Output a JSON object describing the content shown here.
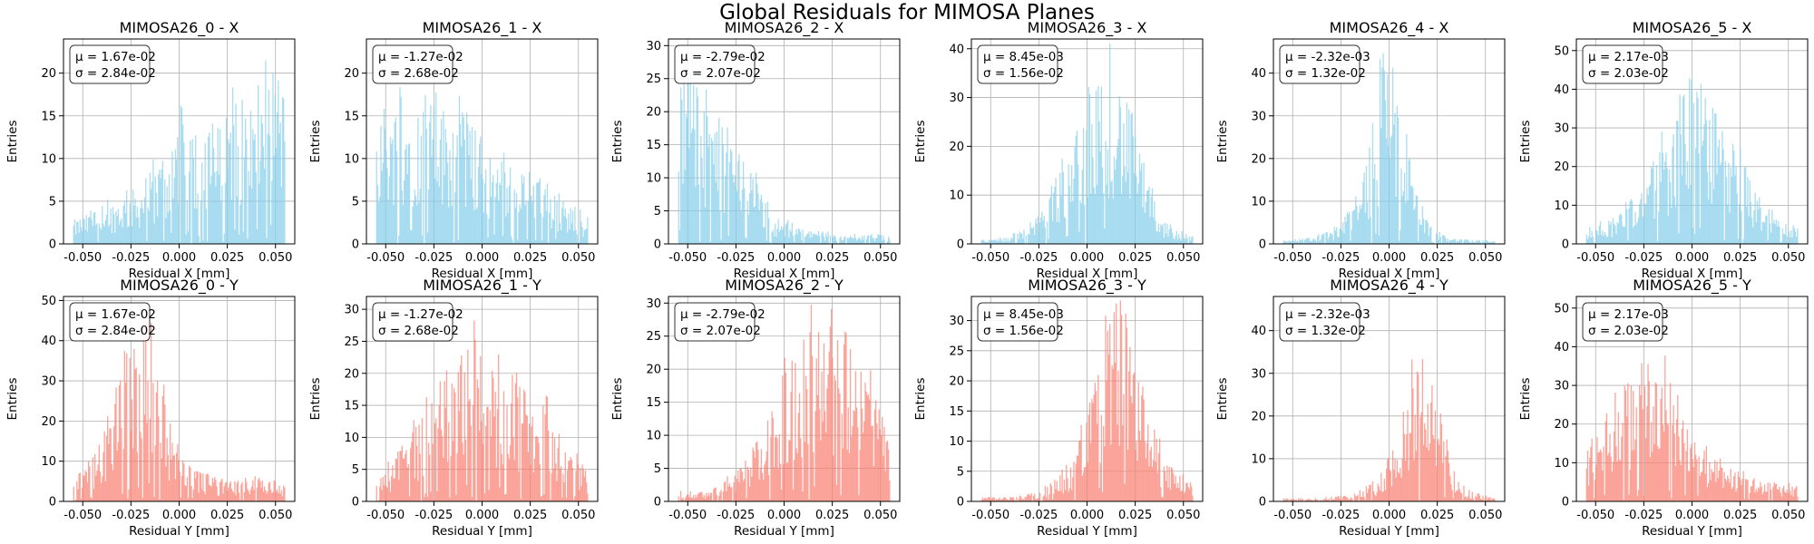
{
  "suptitle": "Global Residuals for MIMOSA Planes",
  "colors": {
    "x_bars": "#87ceeb",
    "y_bars": "#fa8072",
    "grid": "#b0b0b0"
  },
  "chart_data": [
    {
      "type": "bar",
      "title": "MIMOSA26_0 - X",
      "xlabel": "Residual X [mm]",
      "ylabel": "Entries",
      "axis": "x",
      "xlim": [
        -0.06,
        0.06
      ],
      "ylim": [
        0,
        24
      ],
      "yticks": [
        0,
        5,
        10,
        15,
        20
      ],
      "xticks": [
        "-0.050",
        "-0.025",
        "0.000",
        "0.025",
        "0.050"
      ],
      "mu": "1.67e-02",
      "sigma": "2.84e-02",
      "profile": [
        [
          -0.055,
          2
        ],
        [
          -0.04,
          3
        ],
        [
          -0.02,
          5
        ],
        [
          -0.005,
          8
        ],
        [
          0.0,
          12
        ],
        [
          0.01,
          9
        ],
        [
          0.02,
          10
        ],
        [
          0.03,
          12
        ],
        [
          0.04,
          13
        ],
        [
          0.05,
          16
        ],
        [
          0.055,
          12
        ]
      ]
    },
    {
      "type": "bar",
      "title": "MIMOSA26_1 - X",
      "xlabel": "Residual X [mm]",
      "ylabel": "Entries",
      "axis": "x",
      "xlim": [
        -0.06,
        0.06
      ],
      "ylim": [
        0,
        24
      ],
      "yticks": [
        0,
        5,
        10,
        15,
        20
      ],
      "xticks": [
        "-0.050",
        "-0.025",
        "0.000",
        "0.025",
        "0.050"
      ],
      "mu": "-1.27e-02",
      "sigma": "2.68e-02",
      "profile": [
        [
          -0.055,
          12
        ],
        [
          -0.04,
          12
        ],
        [
          -0.025,
          12
        ],
        [
          -0.01,
          11
        ],
        [
          0.0,
          9
        ],
        [
          0.01,
          7
        ],
        [
          0.025,
          6
        ],
        [
          0.04,
          4
        ],
        [
          0.055,
          2
        ]
      ]
    },
    {
      "type": "bar",
      "title": "MIMOSA26_2 - X",
      "xlabel": "Residual X [mm]",
      "ylabel": "Entries",
      "axis": "x",
      "xlim": [
        -0.06,
        0.06
      ],
      "ylim": [
        0,
        31
      ],
      "yticks": [
        0,
        5,
        10,
        15,
        20,
        25,
        30
      ],
      "xticks": [
        "-0.050",
        "-0.025",
        "0.000",
        "0.025",
        "0.050"
      ],
      "mu": "-2.79e-02",
      "sigma": "2.07e-02",
      "profile": [
        [
          -0.055,
          18
        ],
        [
          -0.045,
          17
        ],
        [
          -0.035,
          14
        ],
        [
          -0.025,
          11
        ],
        [
          -0.015,
          7
        ],
        [
          -0.005,
          3
        ],
        [
          0.01,
          1.5
        ],
        [
          0.03,
          1
        ],
        [
          0.055,
          1
        ]
      ]
    },
    {
      "type": "bar",
      "title": "MIMOSA26_3 - X",
      "xlabel": "Residual X [mm]",
      "ylabel": "Entries",
      "axis": "x",
      "xlim": [
        -0.06,
        0.06
      ],
      "ylim": [
        0,
        42
      ],
      "yticks": [
        0,
        10,
        20,
        30,
        40
      ],
      "xticks": [
        "-0.050",
        "-0.025",
        "0.000",
        "0.025",
        "0.050"
      ],
      "mu": "8.45e-03",
      "sigma": "1.56e-02",
      "profile": [
        [
          -0.055,
          0.5
        ],
        [
          -0.04,
          1
        ],
        [
          -0.025,
          4
        ],
        [
          -0.015,
          10
        ],
        [
          -0.005,
          18
        ],
        [
          0.005,
          25
        ],
        [
          0.012,
          27
        ],
        [
          0.02,
          22
        ],
        [
          0.03,
          10
        ],
        [
          0.04,
          3
        ],
        [
          0.055,
          1
        ]
      ]
    },
    {
      "type": "bar",
      "title": "MIMOSA26_4 - X",
      "xlabel": "Residual X [mm]",
      "ylabel": "Entries",
      "axis": "x",
      "xlim": [
        -0.06,
        0.06
      ],
      "ylim": [
        0,
        48
      ],
      "yticks": [
        0,
        10,
        20,
        30,
        40
      ],
      "xticks": [
        "-0.050",
        "-0.025",
        "0.000",
        "0.025",
        "0.050"
      ],
      "mu": "-2.32e-03",
      "sigma": "1.32e-02",
      "profile": [
        [
          -0.055,
          0.5
        ],
        [
          -0.04,
          1
        ],
        [
          -0.025,
          3
        ],
        [
          -0.015,
          10
        ],
        [
          -0.008,
          20
        ],
        [
          -0.002,
          33
        ],
        [
          0.004,
          25
        ],
        [
          0.012,
          12
        ],
        [
          0.02,
          4
        ],
        [
          0.03,
          1
        ],
        [
          0.055,
          0.5
        ]
      ]
    },
    {
      "type": "bar",
      "title": "MIMOSA26_5 - X",
      "xlabel": "Residual X [mm]",
      "ylabel": "Entries",
      "axis": "x",
      "xlim": [
        -0.06,
        0.06
      ],
      "ylim": [
        0,
        53
      ],
      "yticks": [
        0,
        10,
        20,
        30,
        40,
        50
      ],
      "xticks": [
        "-0.050",
        "-0.025",
        "0.000",
        "0.025",
        "0.050"
      ],
      "mu": "2.17e-03",
      "sigma": "2.03e-02",
      "profile": [
        [
          -0.055,
          3
        ],
        [
          -0.04,
          5
        ],
        [
          -0.025,
          12
        ],
        [
          -0.01,
          22
        ],
        [
          0.0,
          33
        ],
        [
          0.01,
          26
        ],
        [
          0.02,
          20
        ],
        [
          0.03,
          12
        ],
        [
          0.04,
          6
        ],
        [
          0.055,
          3
        ]
      ]
    },
    {
      "type": "bar",
      "title": "MIMOSA26_0 - Y",
      "xlabel": "Residual Y [mm]",
      "ylabel": "Entries",
      "axis": "y",
      "xlim": [
        -0.06,
        0.06
      ],
      "ylim": [
        0,
        51
      ],
      "yticks": [
        0,
        10,
        20,
        30,
        40,
        50
      ],
      "xticks": [
        "-0.050",
        "-0.025",
        "0.000",
        "0.025",
        "0.050"
      ],
      "mu": "1.67e-02",
      "sigma": "2.84e-02",
      "profile": [
        [
          -0.055,
          4
        ],
        [
          -0.045,
          8
        ],
        [
          -0.035,
          16
        ],
        [
          -0.025,
          30
        ],
        [
          -0.018,
          36
        ],
        [
          -0.012,
          30
        ],
        [
          -0.005,
          14
        ],
        [
          0.005,
          6
        ],
        [
          0.02,
          4
        ],
        [
          0.04,
          4
        ],
        [
          0.055,
          3
        ]
      ]
    },
    {
      "type": "bar",
      "title": "MIMOSA26_1 - Y",
      "xlabel": "Residual Y [mm]",
      "ylabel": "Entries",
      "axis": "y",
      "xlim": [
        -0.06,
        0.06
      ],
      "ylim": [
        0,
        32
      ],
      "yticks": [
        0,
        5,
        10,
        15,
        20,
        25,
        30
      ],
      "xticks": [
        "-0.050",
        "-0.025",
        "0.000",
        "0.025",
        "0.050"
      ],
      "mu": "-1.27e-02",
      "sigma": "2.68e-02",
      "profile": [
        [
          -0.055,
          2
        ],
        [
          -0.045,
          5
        ],
        [
          -0.03,
          10
        ],
        [
          -0.015,
          16
        ],
        [
          -0.005,
          18
        ],
        [
          0.005,
          15
        ],
        [
          0.02,
          13
        ],
        [
          0.035,
          10
        ],
        [
          0.05,
          5
        ],
        [
          0.055,
          3
        ]
      ]
    },
    {
      "type": "bar",
      "title": "MIMOSA26_2 - Y",
      "xlabel": "Residual Y [mm]",
      "ylabel": "Entries",
      "axis": "y",
      "xlim": [
        -0.06,
        0.06
      ],
      "ylim": [
        0,
        31
      ],
      "yticks": [
        0,
        5,
        10,
        15,
        20,
        25,
        30
      ],
      "xticks": [
        "-0.050",
        "-0.025",
        "0.000",
        "0.025",
        "0.050"
      ],
      "mu": "-2.79e-02",
      "sigma": "2.07e-02",
      "profile": [
        [
          -0.055,
          1
        ],
        [
          -0.04,
          1
        ],
        [
          -0.025,
          3
        ],
        [
          -0.01,
          8
        ],
        [
          0.0,
          14
        ],
        [
          0.01,
          18
        ],
        [
          0.02,
          20
        ],
        [
          0.03,
          19
        ],
        [
          0.04,
          15
        ],
        [
          0.05,
          10
        ],
        [
          0.055,
          6
        ]
      ]
    },
    {
      "type": "bar",
      "title": "MIMOSA26_3 - Y",
      "xlabel": "Residual Y [mm]",
      "ylabel": "Entries",
      "axis": "y",
      "xlim": [
        -0.06,
        0.06
      ],
      "ylim": [
        0,
        34
      ],
      "yticks": [
        0,
        5,
        10,
        15,
        20,
        25,
        30
      ],
      "xticks": [
        "-0.050",
        "-0.025",
        "0.000",
        "0.025",
        "0.050"
      ],
      "mu": "8.45e-03",
      "sigma": "1.56e-02",
      "profile": [
        [
          -0.055,
          0.5
        ],
        [
          -0.04,
          0.5
        ],
        [
          -0.025,
          1
        ],
        [
          -0.01,
          4
        ],
        [
          0.0,
          10
        ],
        [
          0.008,
          18
        ],
        [
          0.015,
          24
        ],
        [
          0.022,
          20
        ],
        [
          0.03,
          12
        ],
        [
          0.04,
          5
        ],
        [
          0.055,
          2
        ]
      ]
    },
    {
      "type": "bar",
      "title": "MIMOSA26_4 - Y",
      "xlabel": "Residual Y [mm]",
      "ylabel": "Entries",
      "axis": "y",
      "xlim": [
        -0.06,
        0.06
      ],
      "ylim": [
        0,
        48
      ],
      "yticks": [
        0,
        10,
        20,
        30,
        40
      ],
      "xticks": [
        "-0.050",
        "-0.025",
        "0.000",
        "0.025",
        "0.050"
      ],
      "mu": "-2.32e-03",
      "sigma": "1.32e-02",
      "profile": [
        [
          -0.055,
          0.5
        ],
        [
          -0.04,
          0.5
        ],
        [
          -0.02,
          1
        ],
        [
          -0.005,
          4
        ],
        [
          0.005,
          12
        ],
        [
          0.012,
          22
        ],
        [
          0.018,
          27
        ],
        [
          0.025,
          18
        ],
        [
          0.032,
          6
        ],
        [
          0.04,
          2
        ],
        [
          0.055,
          0.5
        ]
      ]
    },
    {
      "type": "bar",
      "title": "MIMOSA26_5 - Y",
      "xlabel": "Residual Y [mm]",
      "ylabel": "Entries",
      "axis": "y",
      "xlim": [
        -0.06,
        0.06
      ],
      "ylim": [
        0,
        53
      ],
      "yticks": [
        0,
        10,
        20,
        30,
        40,
        50
      ],
      "xticks": [
        "-0.050",
        "-0.025",
        "0.000",
        "0.025",
        "0.050"
      ],
      "mu": "2.17e-03",
      "sigma": "2.03e-02",
      "profile": [
        [
          -0.055,
          10
        ],
        [
          -0.045,
          16
        ],
        [
          -0.035,
          22
        ],
        [
          -0.025,
          26
        ],
        [
          -0.015,
          25
        ],
        [
          -0.008,
          24
        ],
        [
          0.0,
          12
        ],
        [
          0.01,
          8
        ],
        [
          0.02,
          6
        ],
        [
          0.035,
          4
        ],
        [
          0.055,
          3
        ]
      ]
    }
  ]
}
